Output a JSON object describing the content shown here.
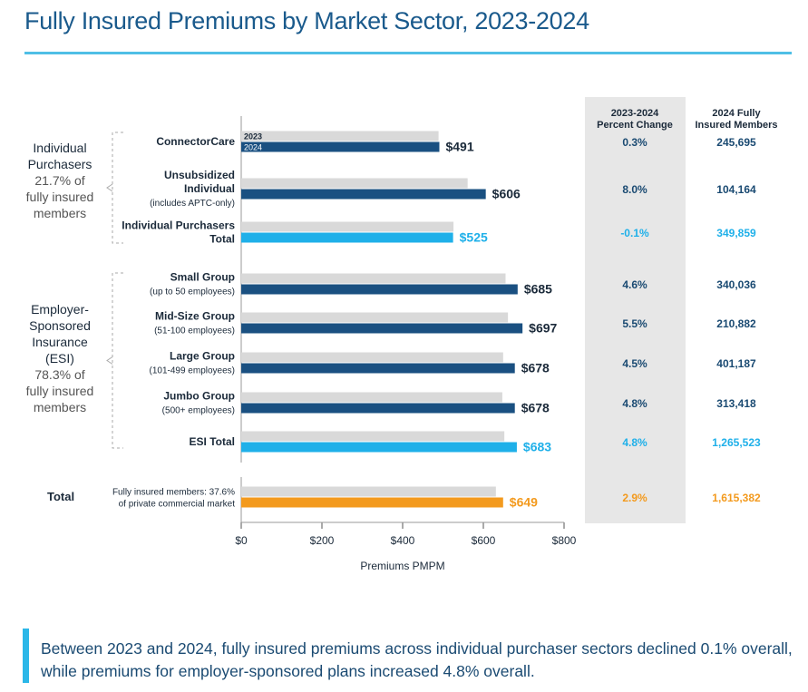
{
  "title": "Fully Insured Premiums by Market Sector, 2023-2024",
  "footer_text": "Between 2023 and 2024, fully insured premiums across individual purchaser sectors declined 0.1% overall, while premiums for employer-sponsored plans increased 4.8% overall.",
  "colors": {
    "bar_2023": "#d9d9d9",
    "bar_2024": "#1a5081",
    "sector_total": "#1fb0e9",
    "overall_total": "#f39a1e",
    "column_bg": "#e7e7e7",
    "title": "#1a5a8c"
  },
  "chart_data": {
    "type": "bar",
    "orientation": "horizontal",
    "xlabel": "Premiums PMPM",
    "xlim": [
      0,
      800
    ],
    "xticks": [
      0,
      200,
      400,
      600,
      800
    ],
    "xtick_labels": [
      "$0",
      "$200",
      "$400",
      "$600",
      "$800"
    ],
    "grid": false,
    "legend": {
      "placement": "inside-first-bar",
      "labels": [
        "2023",
        "2024"
      ]
    },
    "column_headers": {
      "percent_change": [
        "2023-2024",
        "Percent Change"
      ],
      "members": [
        "2024 Fully",
        "Insured Members"
      ]
    },
    "groups": [
      {
        "label": [
          "Individual",
          "Purchasers"
        ],
        "sub": [
          "21.7% of",
          "fully insured",
          "members"
        ]
      },
      {
        "label": [
          "Employer-",
          "Sponsored",
          "Insurance",
          "(ESI)"
        ],
        "sub": [
          "78.3% of",
          "fully insured",
          "members"
        ]
      },
      {
        "label": [
          "Total"
        ],
        "sub": []
      }
    ],
    "categories": [
      {
        "name": [
          "ConnectorCare"
        ],
        "sub": [],
        "group": 0,
        "kind": "segment",
        "v2023": 489,
        "v2024": 491,
        "value_label": "$491",
        "pct_change": "0.3%",
        "members": "245,695"
      },
      {
        "name": [
          "Unsubsidized",
          "Individual"
        ],
        "sub": [
          "(includes APTC-only)"
        ],
        "group": 0,
        "kind": "segment",
        "v2023": 561,
        "v2024": 606,
        "value_label": "$606",
        "pct_change": "8.0%",
        "members": "104,164"
      },
      {
        "name": [
          "Individual Purchasers",
          "Total"
        ],
        "sub": [],
        "group": 0,
        "kind": "sector_total",
        "v2023": 526,
        "v2024": 525,
        "value_label": "$525",
        "pct_change": "-0.1%",
        "members": "349,859"
      },
      {
        "name": [
          "Small Group"
        ],
        "sub": [
          "(up to 50 employees)"
        ],
        "group": 1,
        "kind": "segment",
        "v2023": 655,
        "v2024": 685,
        "value_label": "$685",
        "pct_change": "4.6%",
        "members": "340,036"
      },
      {
        "name": [
          "Mid-Size Group"
        ],
        "sub": [
          "(51-100 employees)"
        ],
        "group": 1,
        "kind": "segment",
        "v2023": 661,
        "v2024": 697,
        "value_label": "$697",
        "pct_change": "5.5%",
        "members": "210,882"
      },
      {
        "name": [
          "Large Group"
        ],
        "sub": [
          "(101-499 employees)"
        ],
        "group": 1,
        "kind": "segment",
        "v2023": 649,
        "v2024": 678,
        "value_label": "$678",
        "pct_change": "4.5%",
        "members": "401,187"
      },
      {
        "name": [
          "Jumbo Group"
        ],
        "sub": [
          "(500+ employees)"
        ],
        "group": 1,
        "kind": "segment",
        "v2023": 647,
        "v2024": 678,
        "value_label": "$678",
        "pct_change": "4.8%",
        "members": "313,418"
      },
      {
        "name": [
          "ESI Total"
        ],
        "sub": [],
        "group": 1,
        "kind": "sector_total",
        "v2023": 652,
        "v2024": 683,
        "value_label": "$683",
        "pct_change": "4.8%",
        "members": "1,265,523"
      },
      {
        "name": [
          "Fully insured members: 37.6%",
          "of private commercial market"
        ],
        "sub": [],
        "group": 2,
        "kind": "overall_total",
        "v2023": 631,
        "v2024": 649,
        "value_label": "$649",
        "pct_change": "2.9%",
        "members": "1,615,382"
      }
    ]
  }
}
